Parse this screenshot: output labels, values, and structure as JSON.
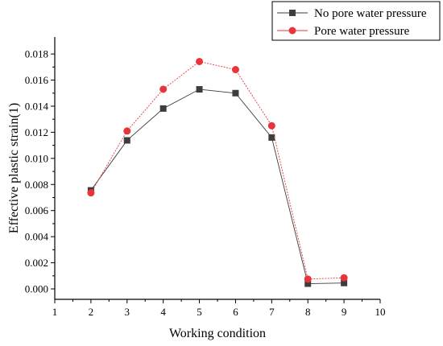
{
  "chart_data": {
    "type": "line",
    "title": "",
    "xlabel": "Working condition",
    "ylabel": "Effective plastic strain(1)",
    "xlim": [
      1,
      10
    ],
    "ylim": [
      -0.0008,
      0.0193
    ],
    "x_ticks": [
      "1",
      "2",
      "3",
      "4",
      "5",
      "6",
      "7",
      "8",
      "9",
      "10"
    ],
    "y_ticks": [
      "0.000",
      "0.002",
      "0.004",
      "0.006",
      "0.008",
      "0.010",
      "0.012",
      "0.014",
      "0.016",
      "0.018"
    ],
    "grid": false,
    "legend_position": "top-right",
    "series": [
      {
        "name": "No pore water pressure",
        "marker": "square",
        "color": "#3d3d3d",
        "x": [
          2,
          3,
          4,
          5,
          6,
          7,
          8,
          9
        ],
        "values": [
          0.00755,
          0.01138,
          0.01382,
          0.01529,
          0.015,
          0.0116,
          0.0004,
          0.00045
        ]
      },
      {
        "name": "Pore water pressure",
        "marker": "circle",
        "color": "#e8353b",
        "x": [
          2,
          3,
          4,
          5,
          6,
          7,
          8,
          9
        ],
        "values": [
          0.00736,
          0.0121,
          0.0153,
          0.01742,
          0.0168,
          0.0125,
          0.00075,
          0.00085
        ]
      }
    ]
  }
}
